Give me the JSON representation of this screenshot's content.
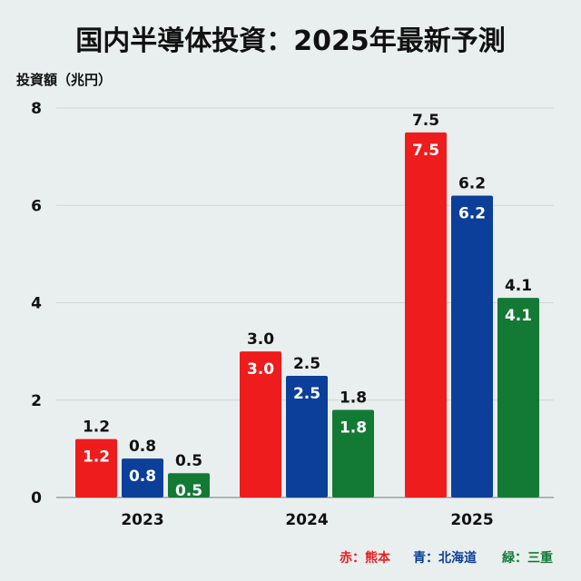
{
  "chart_data": {
    "type": "bar",
    "title": "国内半導体投資：2025年最新予測",
    "ylabel": "投資額（兆円）",
    "xlabel": "",
    "ylim": [
      0,
      8
    ],
    "yticks": [
      0,
      2,
      4,
      6,
      8
    ],
    "grid": true,
    "categories": [
      "2023",
      "2024",
      "2025"
    ],
    "series": [
      {
        "name": "熊本",
        "legend_label": "赤：熊本",
        "color": "#ee1c1c",
        "values": [
          1.2,
          3.0,
          7.5
        ]
      },
      {
        "name": "北海道",
        "legend_label": "青：北海道",
        "color": "#0b3f99",
        "values": [
          0.8,
          2.5,
          6.2
        ]
      },
      {
        "name": "三重",
        "legend_label": "緑：三重",
        "color": "#137a36",
        "values": [
          0.5,
          1.8,
          4.1
        ]
      }
    ],
    "legend_placement": "bottom-right",
    "data_labels": "above and inside bars"
  }
}
